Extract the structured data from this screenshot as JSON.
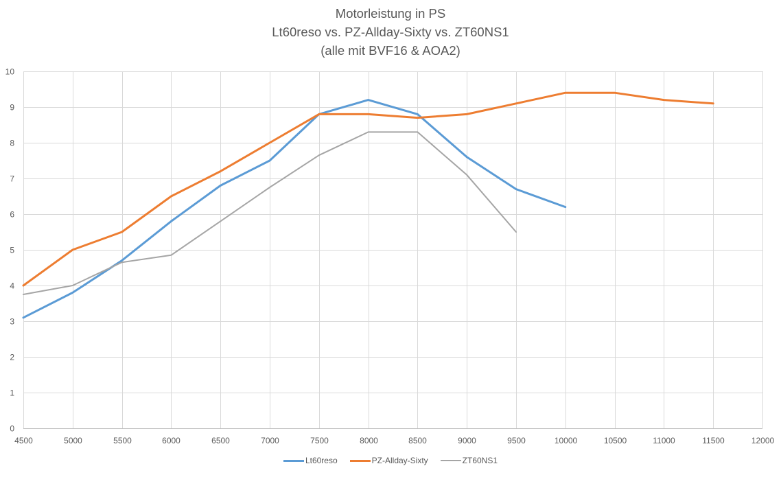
{
  "chart_data": {
    "type": "line",
    "title": "Motorleistung in PS",
    "subtitle_lines": [
      "Lt60reso vs. PZ-Allday-Sixty vs. ZT60NS1",
      "(alle mit BVF16 & AOA2)"
    ],
    "xlabel": "",
    "ylabel": "",
    "xlim": [
      4500,
      12000
    ],
    "ylim": [
      0,
      10
    ],
    "x_ticks": [
      "4500",
      "5000",
      "5500",
      "6000",
      "6500",
      "7000",
      "7500",
      "8000",
      "8500",
      "9000",
      "9500",
      "10000",
      "10500",
      "11000",
      "11500",
      "12000"
    ],
    "y_ticks": [
      "0",
      "1",
      "2",
      "3",
      "4",
      "5",
      "6",
      "7",
      "8",
      "9",
      "10"
    ],
    "grid": true,
    "legend_position": "bottom",
    "series": [
      {
        "name": "Lt60reso",
        "color": "#5B9BD5",
        "x": [
          4500,
          5000,
          5500,
          6000,
          6500,
          7000,
          7500,
          8000,
          8500,
          9000,
          9500,
          10000
        ],
        "values": [
          3.1,
          3.8,
          4.7,
          5.8,
          6.8,
          7.5,
          8.8,
          9.2,
          8.8,
          7.6,
          6.7,
          6.2
        ]
      },
      {
        "name": "PZ-Allday-Sixty",
        "color": "#ED7D31",
        "x": [
          4500,
          5000,
          5500,
          6000,
          6500,
          7000,
          7500,
          8000,
          8500,
          9000,
          9500,
          10000,
          10500,
          11000,
          11500
        ],
        "values": [
          4.0,
          5.0,
          5.5,
          6.5,
          7.2,
          8.0,
          8.8,
          8.8,
          8.7,
          8.8,
          9.1,
          9.4,
          9.4,
          9.2,
          9.1
        ]
      },
      {
        "name": "ZT60NS1",
        "color": "#A5A5A5",
        "x": [
          4500,
          5000,
          5500,
          6000,
          6500,
          7000,
          7500,
          8000,
          8500,
          9000,
          9500
        ],
        "values": [
          3.75,
          4.0,
          4.65,
          4.85,
          5.8,
          6.75,
          7.65,
          8.3,
          8.3,
          7.1,
          5.5
        ]
      }
    ]
  }
}
